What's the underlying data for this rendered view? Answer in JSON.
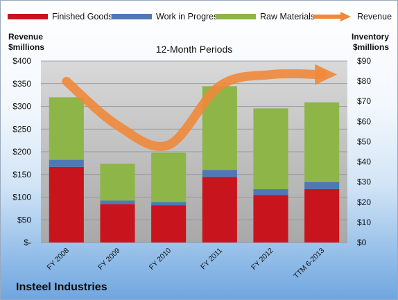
{
  "chart_data": {
    "type": "bar",
    "title": "12-Month Periods",
    "company": "Insteel Industries",
    "categories": [
      "FY 2008",
      "FY 2009",
      "FY 2010",
      "FY 2011",
      "FY 2012",
      "TTM 6-2013"
    ],
    "stacked": true,
    "series": [
      {
        "name": "Finished Goods",
        "axis": "right",
        "color": "#c8141c",
        "values": [
          37.5,
          19.0,
          18.5,
          32.5,
          23.5,
          26.5
        ]
      },
      {
        "name": "Work in Progress",
        "axis": "right",
        "color": "#4f79b6",
        "values": [
          3.5,
          1.8,
          1.5,
          3.5,
          3.0,
          3.5
        ]
      },
      {
        "name": "Raw Materials",
        "axis": "right",
        "color": "#8db548",
        "values": [
          31.0,
          18.2,
          24.5,
          41.5,
          40.0,
          39.5
        ]
      },
      {
        "name": "Revenue",
        "axis": "left",
        "type": "line",
        "color": "#f0883a",
        "values": [
          355,
          258,
          215,
          345,
          370,
          370
        ]
      }
    ],
    "left_axis": {
      "label": [
        "Revenue",
        "$millions"
      ],
      "ylim": [
        0,
        400
      ],
      "ticks": [
        "$-",
        "$50",
        "$100",
        "$150",
        "$200",
        "$250",
        "$300",
        "$350",
        "$400"
      ]
    },
    "right_axis": {
      "label": [
        "Inventory",
        "$millions"
      ],
      "ylim": [
        0,
        90
      ],
      "ticks": [
        "$0",
        "$10",
        "$20",
        "$30",
        "$40",
        "$50",
        "$60",
        "$70",
        "$80",
        "$90"
      ]
    },
    "legend_position": "top",
    "plot_background": "#c0c0c0"
  }
}
